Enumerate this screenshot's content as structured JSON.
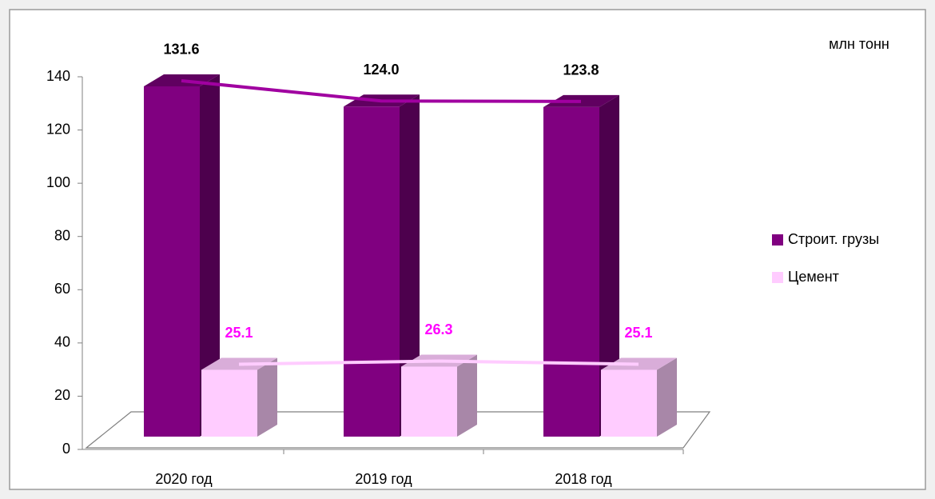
{
  "chart_data": {
    "type": "bar3d",
    "annotation": "млн тонн",
    "categories": [
      "2020 год",
      "2019 год",
      "2018 год"
    ],
    "series": [
      {
        "name": "Строит. грузы",
        "color": "#800080",
        "values": [
          131.6,
          124.0,
          123.8
        ],
        "value_labels": [
          "131.6",
          "124.0",
          "123.8"
        ]
      },
      {
        "name": "Цемент",
        "color": "#ffccff",
        "values": [
          25.1,
          26.3,
          25.1
        ]
      }
    ],
    "ylim": [
      0,
      140
    ],
    "yticks": [
      0,
      20,
      40,
      60,
      80,
      100,
      120,
      140
    ]
  }
}
